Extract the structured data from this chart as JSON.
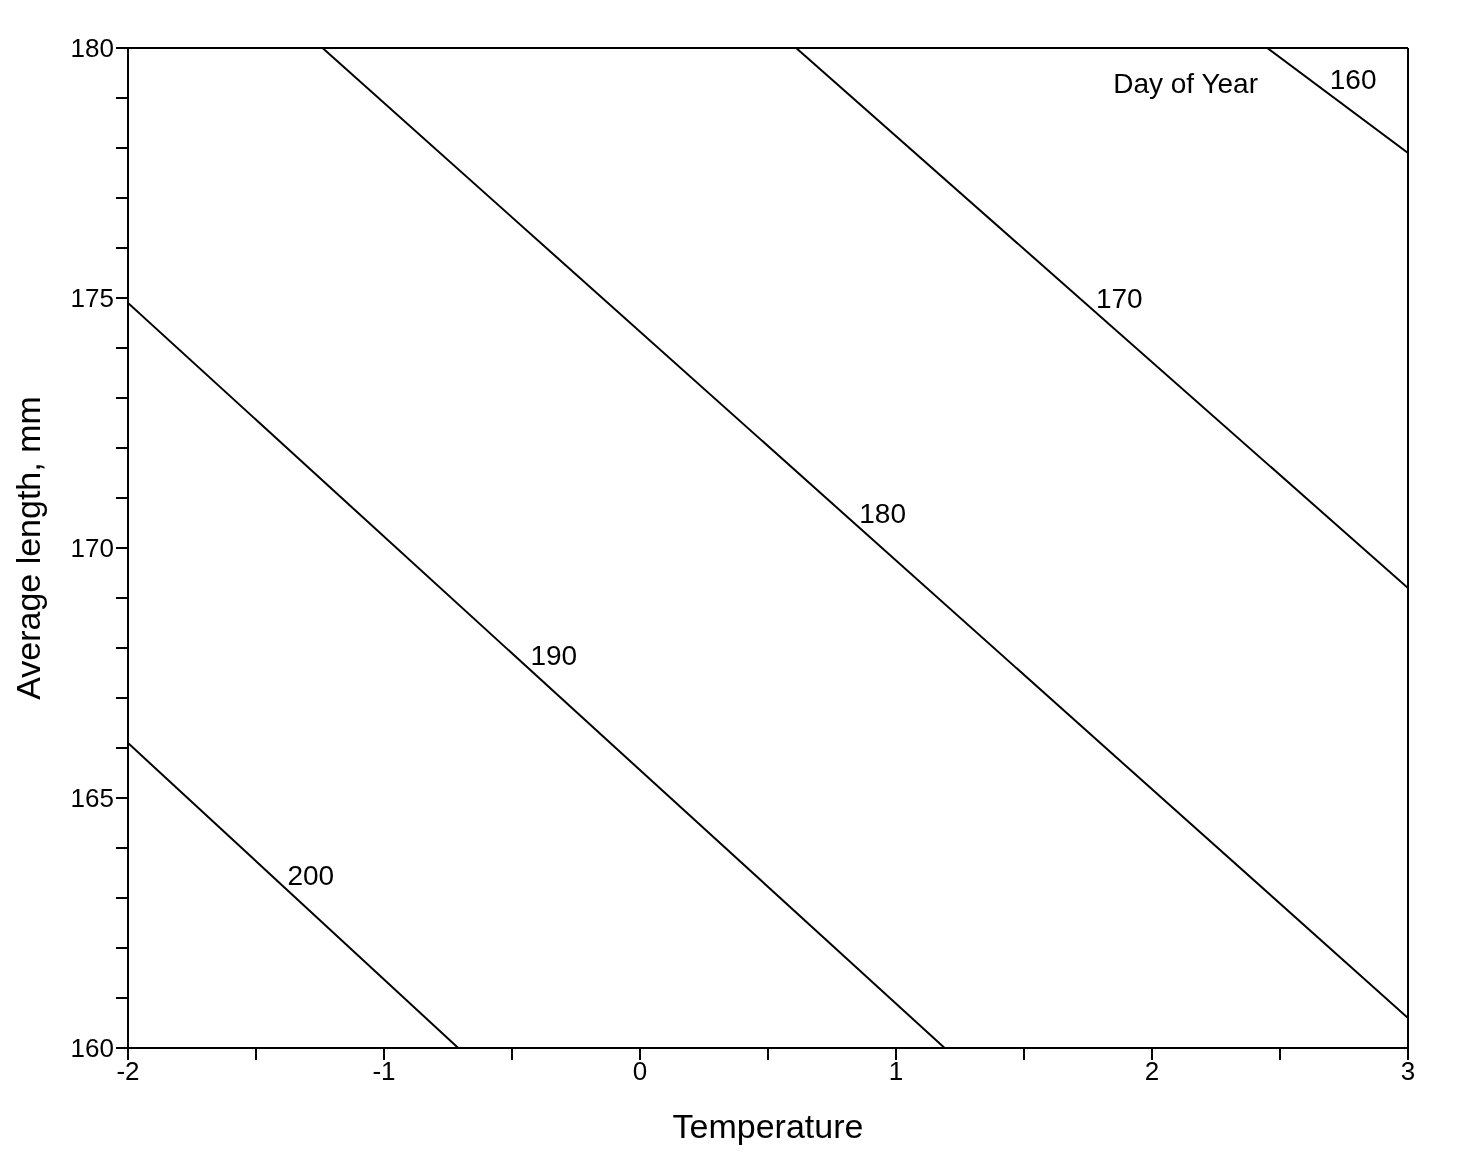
{
  "chart_data": {
    "type": "line",
    "xlabel": "Temperature",
    "ylabel": "Average length, mm",
    "xlim": [
      -2,
      3
    ],
    "ylim": [
      160,
      180
    ],
    "xticks": [
      -2,
      {
        "value": -1.5,
        "label": null
      },
      -1,
      {
        "value": -0.5,
        "label": null
      },
      0,
      {
        "value": 0.5,
        "label": null
      },
      1,
      {
        "value": 1.5,
        "label": null
      },
      2,
      {
        "value": 2.5,
        "label": null
      },
      3
    ],
    "yticks": [
      160,
      {
        "value": 161,
        "label": null
      },
      {
        "value": 162,
        "label": null
      },
      {
        "value": 163,
        "label": null
      },
      {
        "value": 164,
        "label": null
      },
      165,
      {
        "value": 166,
        "label": null
      },
      {
        "value": 167,
        "label": null
      },
      {
        "value": 168,
        "label": null
      },
      {
        "value": 169,
        "label": null
      },
      170,
      {
        "value": 171,
        "label": null
      },
      {
        "value": 172,
        "label": null
      },
      {
        "value": 173,
        "label": null
      },
      {
        "value": 174,
        "label": null
      },
      175,
      {
        "value": 176,
        "label": null
      },
      {
        "value": 177,
        "label": null
      },
      {
        "value": 178,
        "label": null
      },
      {
        "value": 179,
        "label": null
      },
      180
    ],
    "grid": false,
    "marker": "none",
    "line_style": "solid",
    "annotations": [
      "Day of Year"
    ],
    "series": [
      {
        "name": "160",
        "color": "#000000",
        "x": [
          2.45,
          3
        ],
        "values": [
          180,
          177.9
        ]
      },
      {
        "name": "170",
        "color": "#000000",
        "x": [
          0.61,
          3
        ],
        "values": [
          180,
          169.2
        ]
      },
      {
        "name": "180",
        "color": "#000000",
        "x": [
          -1.24,
          3
        ],
        "values": [
          180,
          160.6
        ]
      },
      {
        "name": "190",
        "color": "#000000",
        "x": [
          -2,
          1.19
        ],
        "values": [
          174.9,
          160
        ]
      },
      {
        "name": "200",
        "color": "#000000",
        "x": [
          -2,
          -0.71
        ],
        "values": [
          166.1,
          160
        ]
      }
    ]
  }
}
